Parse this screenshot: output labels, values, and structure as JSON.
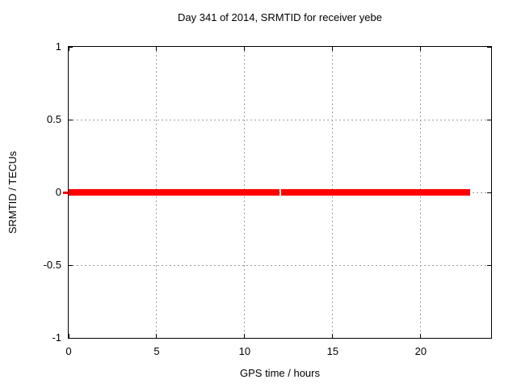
{
  "window": {
    "background": "#ffffff"
  },
  "chart_data": {
    "type": "line",
    "title": "Day 341 of 2014, SRMTID for receiver yebe",
    "xlabel": "GPS time / hours",
    "ylabel": "SRMTID / TECUs",
    "xlim": [
      0,
      24
    ],
    "ylim": [
      -1,
      1
    ],
    "xticks": [
      {
        "value": 0,
        "label": "0"
      },
      {
        "value": 5,
        "label": "5"
      },
      {
        "value": 10,
        "label": "10"
      },
      {
        "value": 15,
        "label": "15"
      },
      {
        "value": 20,
        "label": "20"
      }
    ],
    "yticks": [
      {
        "value": -1,
        "label": "-1"
      },
      {
        "value": -0.5,
        "label": "-0.5"
      },
      {
        "value": 0,
        "label": "0"
      },
      {
        "value": 0.5,
        "label": "0.5"
      },
      {
        "value": 1,
        "label": "1"
      }
    ],
    "grid": true,
    "legend": "none",
    "series": [
      {
        "name": "SRMTID",
        "color": "#ff0000",
        "line_width": 8,
        "segments": [
          {
            "x_start": 0,
            "x_end": 11.98,
            "y": 0
          },
          {
            "x_start": 12.08,
            "x_end": 22.8,
            "y": 0
          }
        ]
      }
    ],
    "colors": {
      "border": "#000000",
      "grid": "#9e9e9e",
      "text": "#000000"
    }
  }
}
